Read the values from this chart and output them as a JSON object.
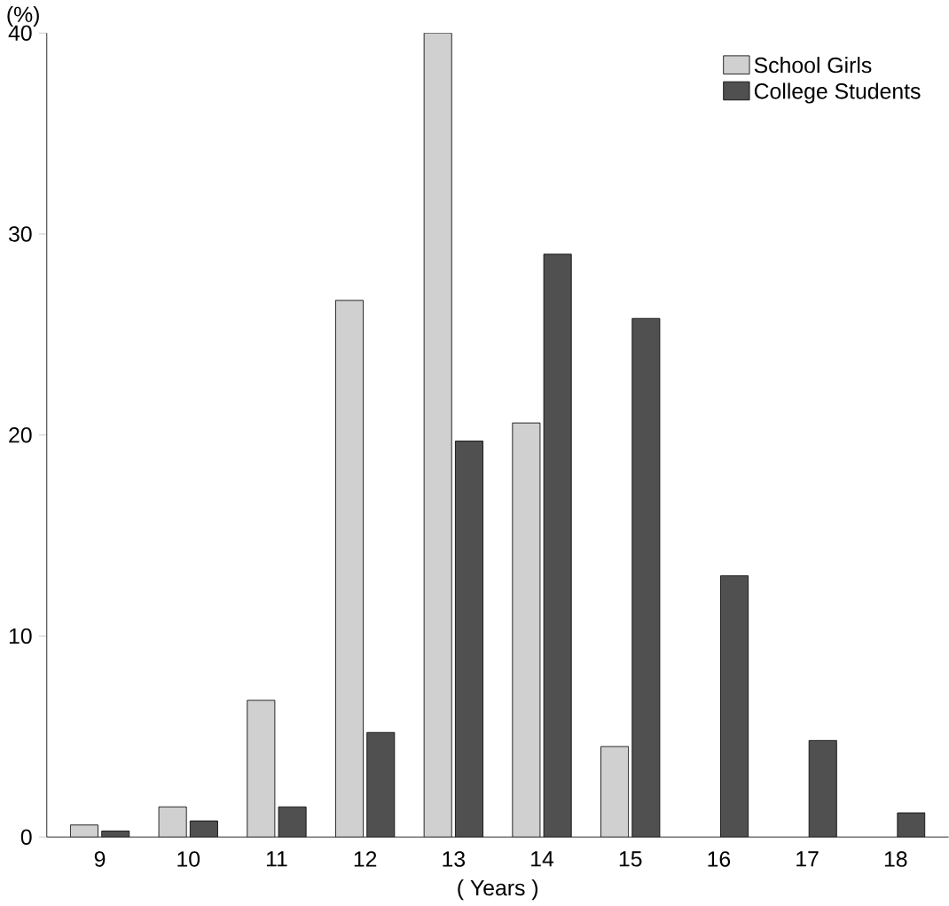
{
  "chart_data": {
    "type": "bar",
    "xlabel": "( Years )",
    "ylabel": "(%)",
    "categories": [
      "9",
      "10",
      "11",
      "12",
      "13",
      "14",
      "15",
      "16",
      "17",
      "18"
    ],
    "series": [
      {
        "name": "School Girls",
        "color": "#d0d0d0",
        "values": [
          0.6,
          1.5,
          6.8,
          26.7,
          40,
          20.6,
          4.5,
          null,
          null,
          null
        ]
      },
      {
        "name": "College Students",
        "color": "#505050",
        "values": [
          0.3,
          0.8,
          1.5,
          5.2,
          19.7,
          29,
          25.8,
          13,
          4.8,
          1.2
        ]
      }
    ],
    "ylim": [
      0,
      40
    ],
    "yticks": [
      0,
      10,
      20,
      30,
      40
    ],
    "legend": "top right",
    "grid": false
  }
}
